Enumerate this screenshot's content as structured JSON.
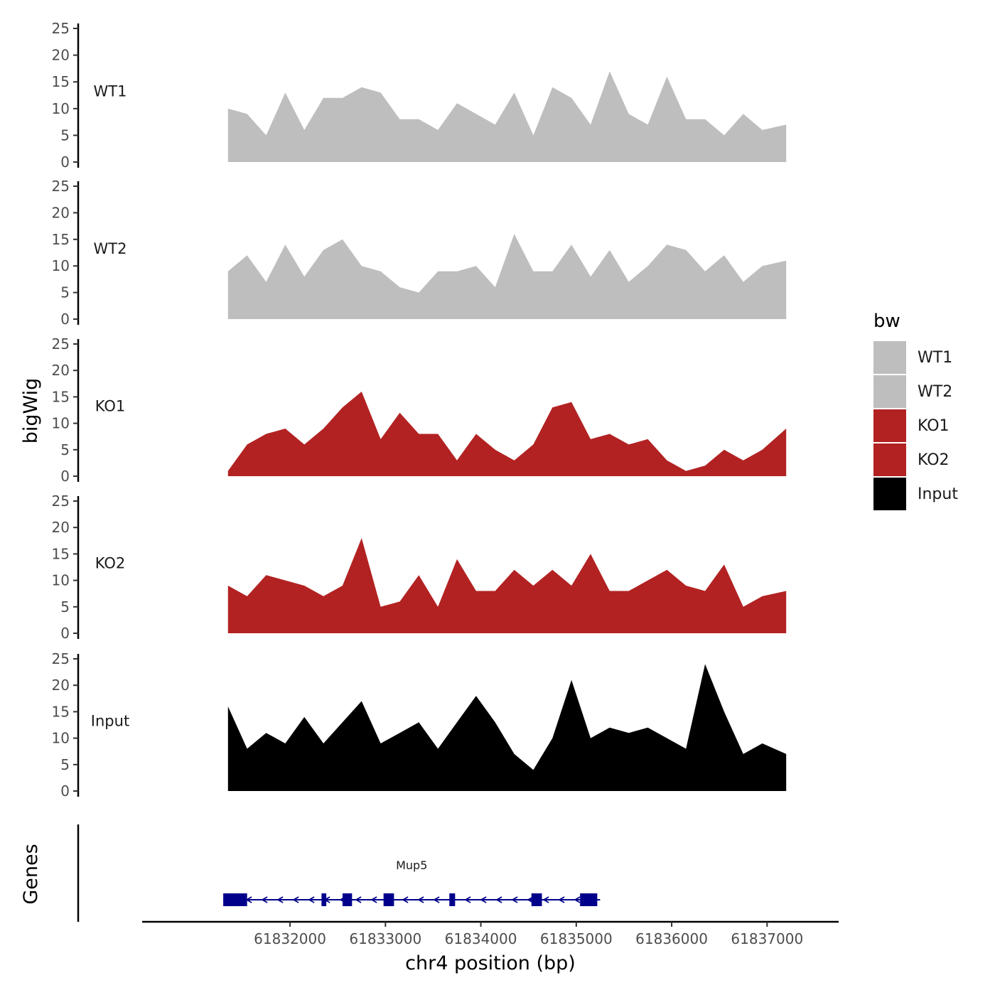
{
  "chart_data": {
    "type": "area",
    "ylabel": "bigWig",
    "xlabel": "chr4 position (bp)",
    "ylim": [
      0,
      25
    ],
    "yticks": [
      0,
      5,
      10,
      15,
      20,
      25
    ],
    "xlim": [
      61830450,
      61837750
    ],
    "xticks": [
      61832000,
      61833000,
      61834000,
      61835000,
      61836000,
      61837000
    ],
    "xtick_labels": [
      "61832000",
      "61833000",
      "61834000",
      "61835000",
      "61836000",
      "61837000"
    ],
    "x": [
      61831350,
      61831550,
      61831750,
      61831950,
      61832150,
      61832350,
      61832550,
      61832750,
      61832950,
      61833150,
      61833350,
      61833550,
      61833750,
      61833950,
      61834150,
      61834350,
      61834550,
      61834750,
      61834950,
      61835150,
      61835350,
      61835550,
      61835750,
      61835950,
      61836150,
      61836350,
      61836550,
      61836750,
      61836950,
      61837200
    ],
    "series": [
      {
        "name": "WT1",
        "color": "#bebebe",
        "values": [
          10,
          9,
          5,
          13,
          6,
          12,
          12,
          14,
          13,
          8,
          8,
          6,
          11,
          9,
          7,
          13,
          5,
          14,
          12,
          7,
          17,
          9,
          7,
          16,
          8,
          8,
          5,
          9,
          6,
          7
        ]
      },
      {
        "name": "WT2",
        "color": "#bebebe",
        "values": [
          9,
          12,
          7,
          14,
          8,
          13,
          15,
          10,
          9,
          6,
          5,
          9,
          9,
          10,
          6,
          16,
          9,
          9,
          14,
          8,
          13,
          7,
          10,
          14,
          13,
          9,
          12,
          7,
          10,
          11
        ]
      },
      {
        "name": "KO1",
        "color": "#b22222",
        "values": [
          1,
          6,
          8,
          9,
          6,
          9,
          13,
          16,
          7,
          12,
          8,
          8,
          3,
          8,
          5,
          3,
          6,
          13,
          14,
          7,
          8,
          6,
          7,
          3,
          1,
          2,
          5,
          3,
          5,
          9
        ]
      },
      {
        "name": "KO2",
        "color": "#b22222",
        "values": [
          9,
          7,
          11,
          10,
          9,
          7,
          9,
          18,
          5,
          6,
          11,
          5,
          14,
          8,
          8,
          12,
          9,
          12,
          9,
          15,
          8,
          8,
          10,
          12,
          9,
          8,
          13,
          5,
          7,
          8
        ]
      },
      {
        "name": "Input",
        "color": "#000000",
        "values": [
          16,
          8,
          11,
          9,
          14,
          9,
          13,
          17,
          9,
          11,
          13,
          8,
          13,
          18,
          13,
          7,
          4,
          10,
          21,
          10,
          12,
          11,
          12,
          10,
          8,
          24,
          15,
          7,
          9,
          7
        ]
      }
    ],
    "legend": {
      "title": "bw",
      "position": "right",
      "entries": [
        {
          "label": "WT1",
          "color": "#bebebe"
        },
        {
          "label": "WT2",
          "color": "#bebebe"
        },
        {
          "label": "KO1",
          "color": "#b22222"
        },
        {
          "label": "KO2",
          "color": "#b22222"
        },
        {
          "label": "Input",
          "color": "#000000"
        }
      ]
    },
    "genes": {
      "title": "Genes",
      "color": "#00008b",
      "items": [
        {
          "name": "Mup5",
          "start": 61831300,
          "end": 61835250,
          "strand": "-",
          "exons": [
            [
              61831300,
              61831550
            ],
            [
              61832330,
              61832380
            ],
            [
              61832550,
              61832650
            ],
            [
              61832980,
              61833090
            ],
            [
              61833670,
              61833730
            ],
            [
              61834530,
              61834640
            ],
            [
              61835040,
              61835220
            ]
          ]
        }
      ]
    },
    "grid": false
  }
}
